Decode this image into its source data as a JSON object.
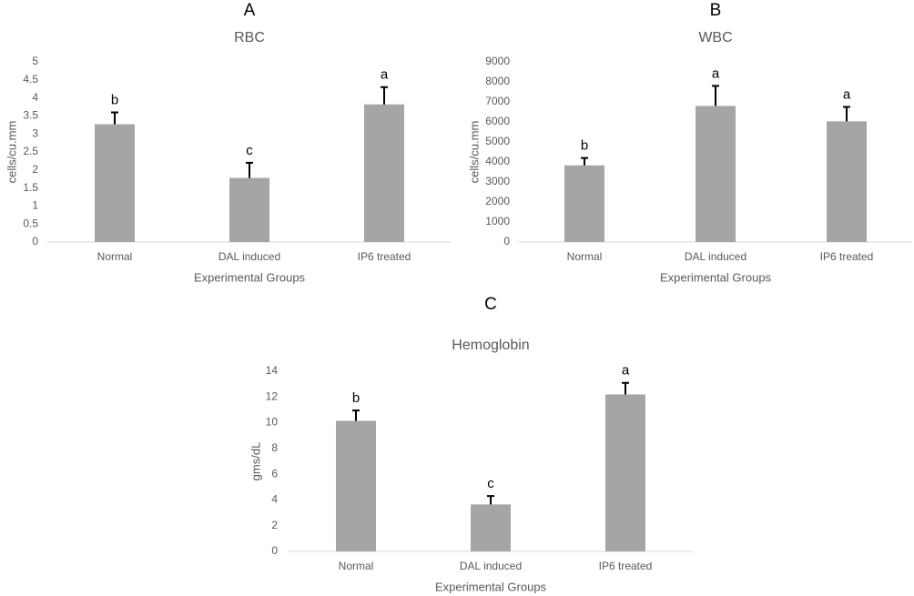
{
  "chart_data": [
    {
      "type": "bar",
      "panel_label": "A",
      "title": "RBC",
      "x_label": "Experimental Groups",
      "y_label": "cells/cu.mm",
      "categories": [
        "Normal",
        "DAL induced",
        "IP6 treated"
      ],
      "values": [
        3.27,
        1.78,
        3.82
      ],
      "errors": [
        0.33,
        0.42,
        0.48
      ],
      "annotations": [
        "b",
        "c",
        "a"
      ],
      "color": "#a5a5a5",
      "ylim": [
        0,
        5
      ],
      "yticks": [
        0,
        0.5,
        1,
        1.5,
        2,
        2.5,
        3,
        3.5,
        4,
        4.5,
        5
      ],
      "grid": false
    },
    {
      "type": "bar",
      "panel_label": "B",
      "title": "WBC",
      "x_label": "Experimental Groups",
      "y_label": "cells/cu.mm",
      "categories": [
        "Normal",
        "DAL induced",
        "IP6 treated"
      ],
      "values": [
        3830,
        6800,
        6030
      ],
      "errors": [
        370,
        1000,
        720
      ],
      "annotations": [
        "b",
        "a",
        "a"
      ],
      "color": "#a5a5a5",
      "ylim": [
        0,
        9000
      ],
      "yticks": [
        0,
        1000,
        2000,
        3000,
        4000,
        5000,
        6000,
        7000,
        8000,
        9000
      ],
      "grid": false
    },
    {
      "type": "bar",
      "panel_label": "C",
      "title": "Hemoglobin",
      "x_label": "Experimental Groups",
      "y_label": "gms/dL",
      "categories": [
        "Normal",
        "DAL induced",
        "IP6 treated"
      ],
      "values": [
        10.15,
        3.65,
        12.2
      ],
      "errors": [
        0.8,
        0.65,
        0.9
      ],
      "annotations": [
        "b",
        "c",
        "a"
      ],
      "color": "#a5a5a5",
      "ylim": [
        0,
        14
      ],
      "yticks": [
        0,
        2,
        4,
        6,
        8,
        10,
        12,
        14
      ],
      "grid": false
    }
  ]
}
